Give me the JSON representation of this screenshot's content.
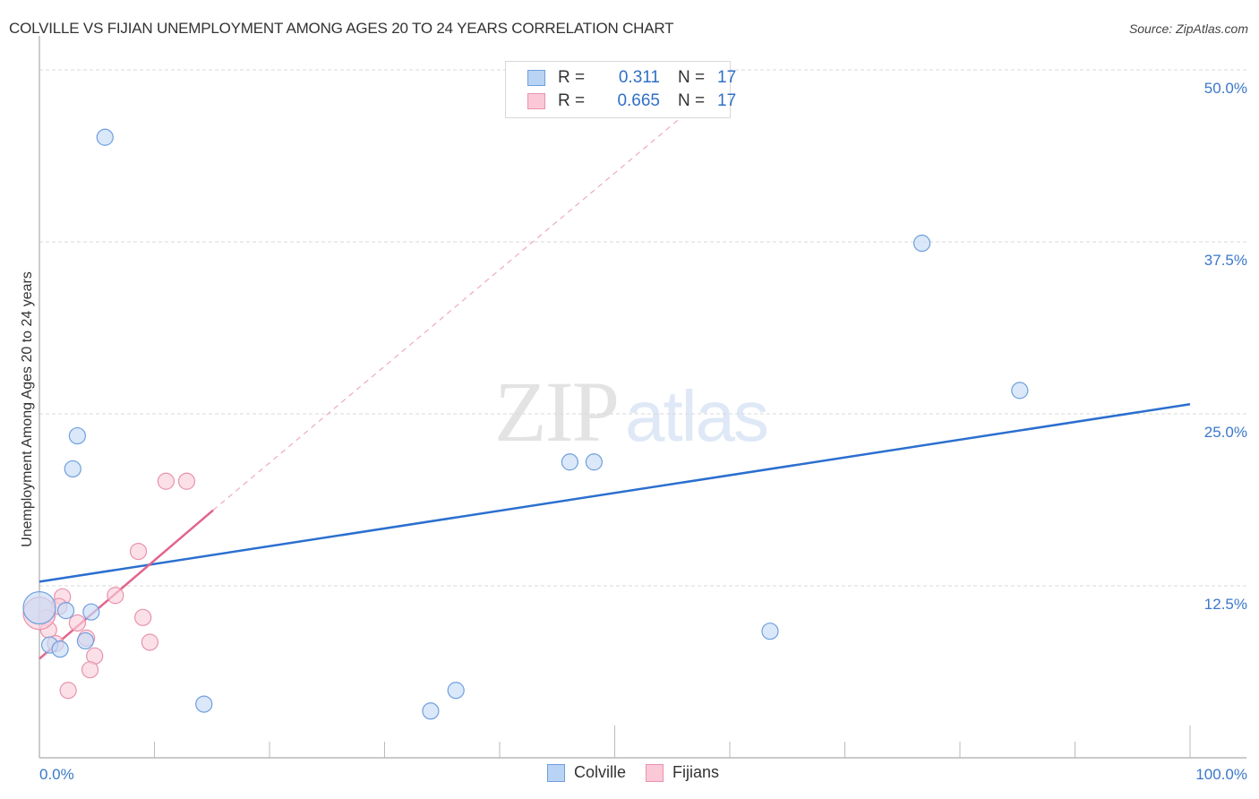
{
  "header": {
    "title": "COLVILLE VS FIJIAN UNEMPLOYMENT AMONG AGES 20 TO 24 YEARS CORRELATION CHART",
    "source": "Source: ZipAtlas.com"
  },
  "watermark": {
    "zip": "ZIP",
    "atlas": "atlas"
  },
  "legend": {
    "rows": [
      {
        "series": "Colville",
        "r_label": "R =",
        "r_value": "0.311",
        "n_label": "N =",
        "n_value": "17",
        "color": "#a9c8f0",
        "border": "#6f9fdc"
      },
      {
        "series": "Fijians",
        "r_label": "R =",
        "r_value": "0.665",
        "n_label": "N =",
        "n_value": "17",
        "color": "#f9c6d5",
        "border": "#e893ad"
      }
    ]
  },
  "bottom_legend": {
    "items": [
      {
        "label": "Colville",
        "color": "#b9d3f5",
        "border": "#6f9fdc"
      },
      {
        "label": "Fijians",
        "color": "#fbc8d7",
        "border": "#e893ad"
      }
    ]
  },
  "axes": {
    "ylabel": "Unemployment Among Ages 20 to 24 years",
    "y_ticks": [
      "50.0%",
      "37.5%",
      "25.0%",
      "12.5%"
    ],
    "x_ticks": [
      "0.0%",
      "100.0%"
    ]
  },
  "colors": {
    "colville_fill": "#c6dbf7",
    "colville_stroke": "#6f9fdc",
    "colville_line": "#2b6fcf",
    "fijians_fill": "#fbd0dc",
    "fijians_stroke": "#e893ad",
    "fijians_line": "#e2648d",
    "tick_text": "#3a78c9"
  },
  "chart_data": {
    "type": "scatter",
    "title": "COLVILLE VS FIJIAN UNEMPLOYMENT AMONG AGES 20 TO 24 YEARS CORRELATION CHART",
    "xlabel": "",
    "ylabel": "Unemployment Among Ages 20 to 24 years",
    "xlim": [
      0,
      100
    ],
    "ylim": [
      0,
      52
    ],
    "x_ticks": [
      "0.0%",
      "100.0%"
    ],
    "y_ticks": [
      "12.5%",
      "25.0%",
      "37.5%",
      "50.0%"
    ],
    "grid": true,
    "legend_position": "top-center",
    "series": [
      {
        "name": "Colville",
        "r": 0.311,
        "n": 17,
        "points": [
          [
            5.7,
            45.1
          ],
          [
            76.7,
            37.4
          ],
          [
            85.2,
            26.7
          ],
          [
            3.3,
            23.4
          ],
          [
            2.9,
            21.0
          ],
          [
            46.1,
            21.5
          ],
          [
            48.2,
            21.5
          ],
          [
            0.0,
            10.9
          ],
          [
            4.5,
            10.6
          ],
          [
            0.9,
            8.2
          ],
          [
            1.8,
            7.9
          ],
          [
            4.0,
            8.5
          ],
          [
            63.5,
            9.2
          ],
          [
            36.2,
            4.9
          ],
          [
            14.3,
            3.9
          ],
          [
            34.0,
            3.4
          ],
          [
            2.3,
            10.7
          ]
        ],
        "trend": {
          "x": [
            0,
            100
          ],
          "y": [
            12.8,
            25.7
          ]
        }
      },
      {
        "name": "Fijians",
        "r": 0.665,
        "n": 17,
        "points": [
          [
            11.0,
            20.1
          ],
          [
            12.8,
            20.1
          ],
          [
            8.6,
            15.0
          ],
          [
            6.6,
            11.8
          ],
          [
            2.0,
            11.7
          ],
          [
            1.7,
            11.0
          ],
          [
            0.6,
            10.2
          ],
          [
            9.0,
            10.2
          ],
          [
            3.3,
            9.8
          ],
          [
            0.8,
            9.3
          ],
          [
            4.1,
            8.7
          ],
          [
            9.6,
            8.4
          ],
          [
            1.4,
            8.3
          ],
          [
            4.8,
            7.4
          ],
          [
            4.4,
            6.4
          ],
          [
            2.5,
            4.9
          ],
          [
            0.0,
            10.5
          ]
        ],
        "trend": {
          "x": [
            0,
            15.1
          ],
          "y": [
            7.2,
            18.0
          ],
          "extrapolated_to": [
            55.7,
            46.5
          ]
        }
      }
    ]
  }
}
